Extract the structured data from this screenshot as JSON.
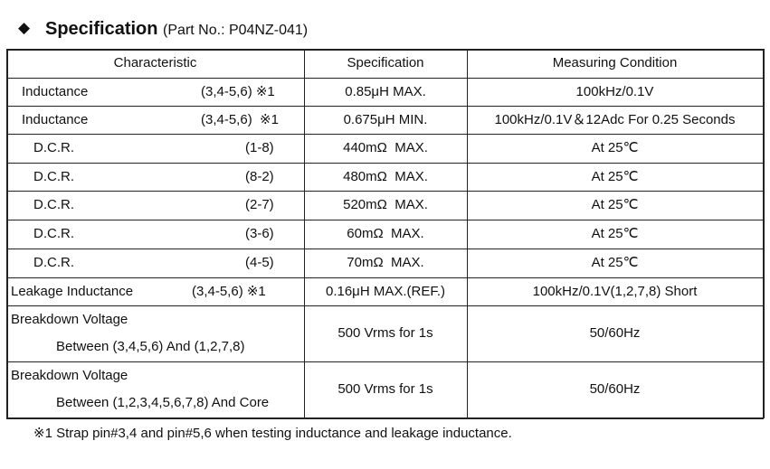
{
  "heading": {
    "title": "Specification",
    "part_no": "(Part No.: P04NZ-041)"
  },
  "table": {
    "header": [
      "Characteristic",
      "Specification",
      "Measuring Condition"
    ],
    "rows": [
      {
        "name": "Inductance",
        "pins": "(3,4-5,6) ※1",
        "spec": "0.85μH MAX.",
        "condition": "100kHz/0.1V"
      },
      {
        "name": "Inductance",
        "pins": "(3,4-5,6)  ※1",
        "spec": "0.675μH MIN.",
        "condition": "100kHz/0.1V＆12Adc For 0.25 Seconds"
      },
      {
        "name": "D.C.R.",
        "pins": "(1-8)",
        "spec": "440mΩ  MAX.",
        "condition": "At 25℃"
      },
      {
        "name": "D.C.R.",
        "pins": "(8-2)",
        "spec": "480mΩ  MAX.",
        "condition": "At 25℃"
      },
      {
        "name": "D.C.R.",
        "pins": "(2-7)",
        "spec": "520mΩ  MAX.",
        "condition": "At 25℃"
      },
      {
        "name": "D.C.R.",
        "pins": "(3-6)",
        "spec": "60mΩ  MAX.",
        "condition": "At 25℃"
      },
      {
        "name": "D.C.R.",
        "pins": "(4-5)",
        "spec": "70mΩ  MAX.",
        "condition": "At 25℃"
      },
      {
        "name": "Leakage Inductance",
        "pins": "(3,4-5,6) ※1",
        "spec": "0.16μH MAX.(REF.)",
        "condition": "100kHz/0.1V(1,2,7,8) Short"
      },
      {
        "name": "Breakdown Voltage",
        "pins": "Between (3,4,5,6) And (1,2,7,8)",
        "spec": "500 Vrms for 1s",
        "condition": "50/60Hz"
      },
      {
        "name": "Breakdown Voltage",
        "pins": "Between (1,2,3,4,5,6,7,8) And Core",
        "spec": "500 Vrms for 1s",
        "condition": "50/60Hz"
      }
    ]
  },
  "footnote": "※1 Strap pin#3,4 and pin#5,6 when testing inductance and leakage inductance."
}
